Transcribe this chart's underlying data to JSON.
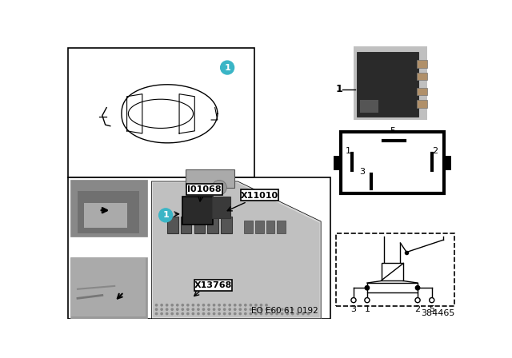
{
  "bg_color": "#ffffff",
  "label_io1068": "I01068",
  "label_x11010": "X11010",
  "label_x13768": "X13768",
  "label_eo": "EO E60 61 0192",
  "label_part": "384465",
  "teal_color": "#3ab5c6",
  "schematic_pins": [
    "3",
    "1",
    "2",
    "5"
  ]
}
